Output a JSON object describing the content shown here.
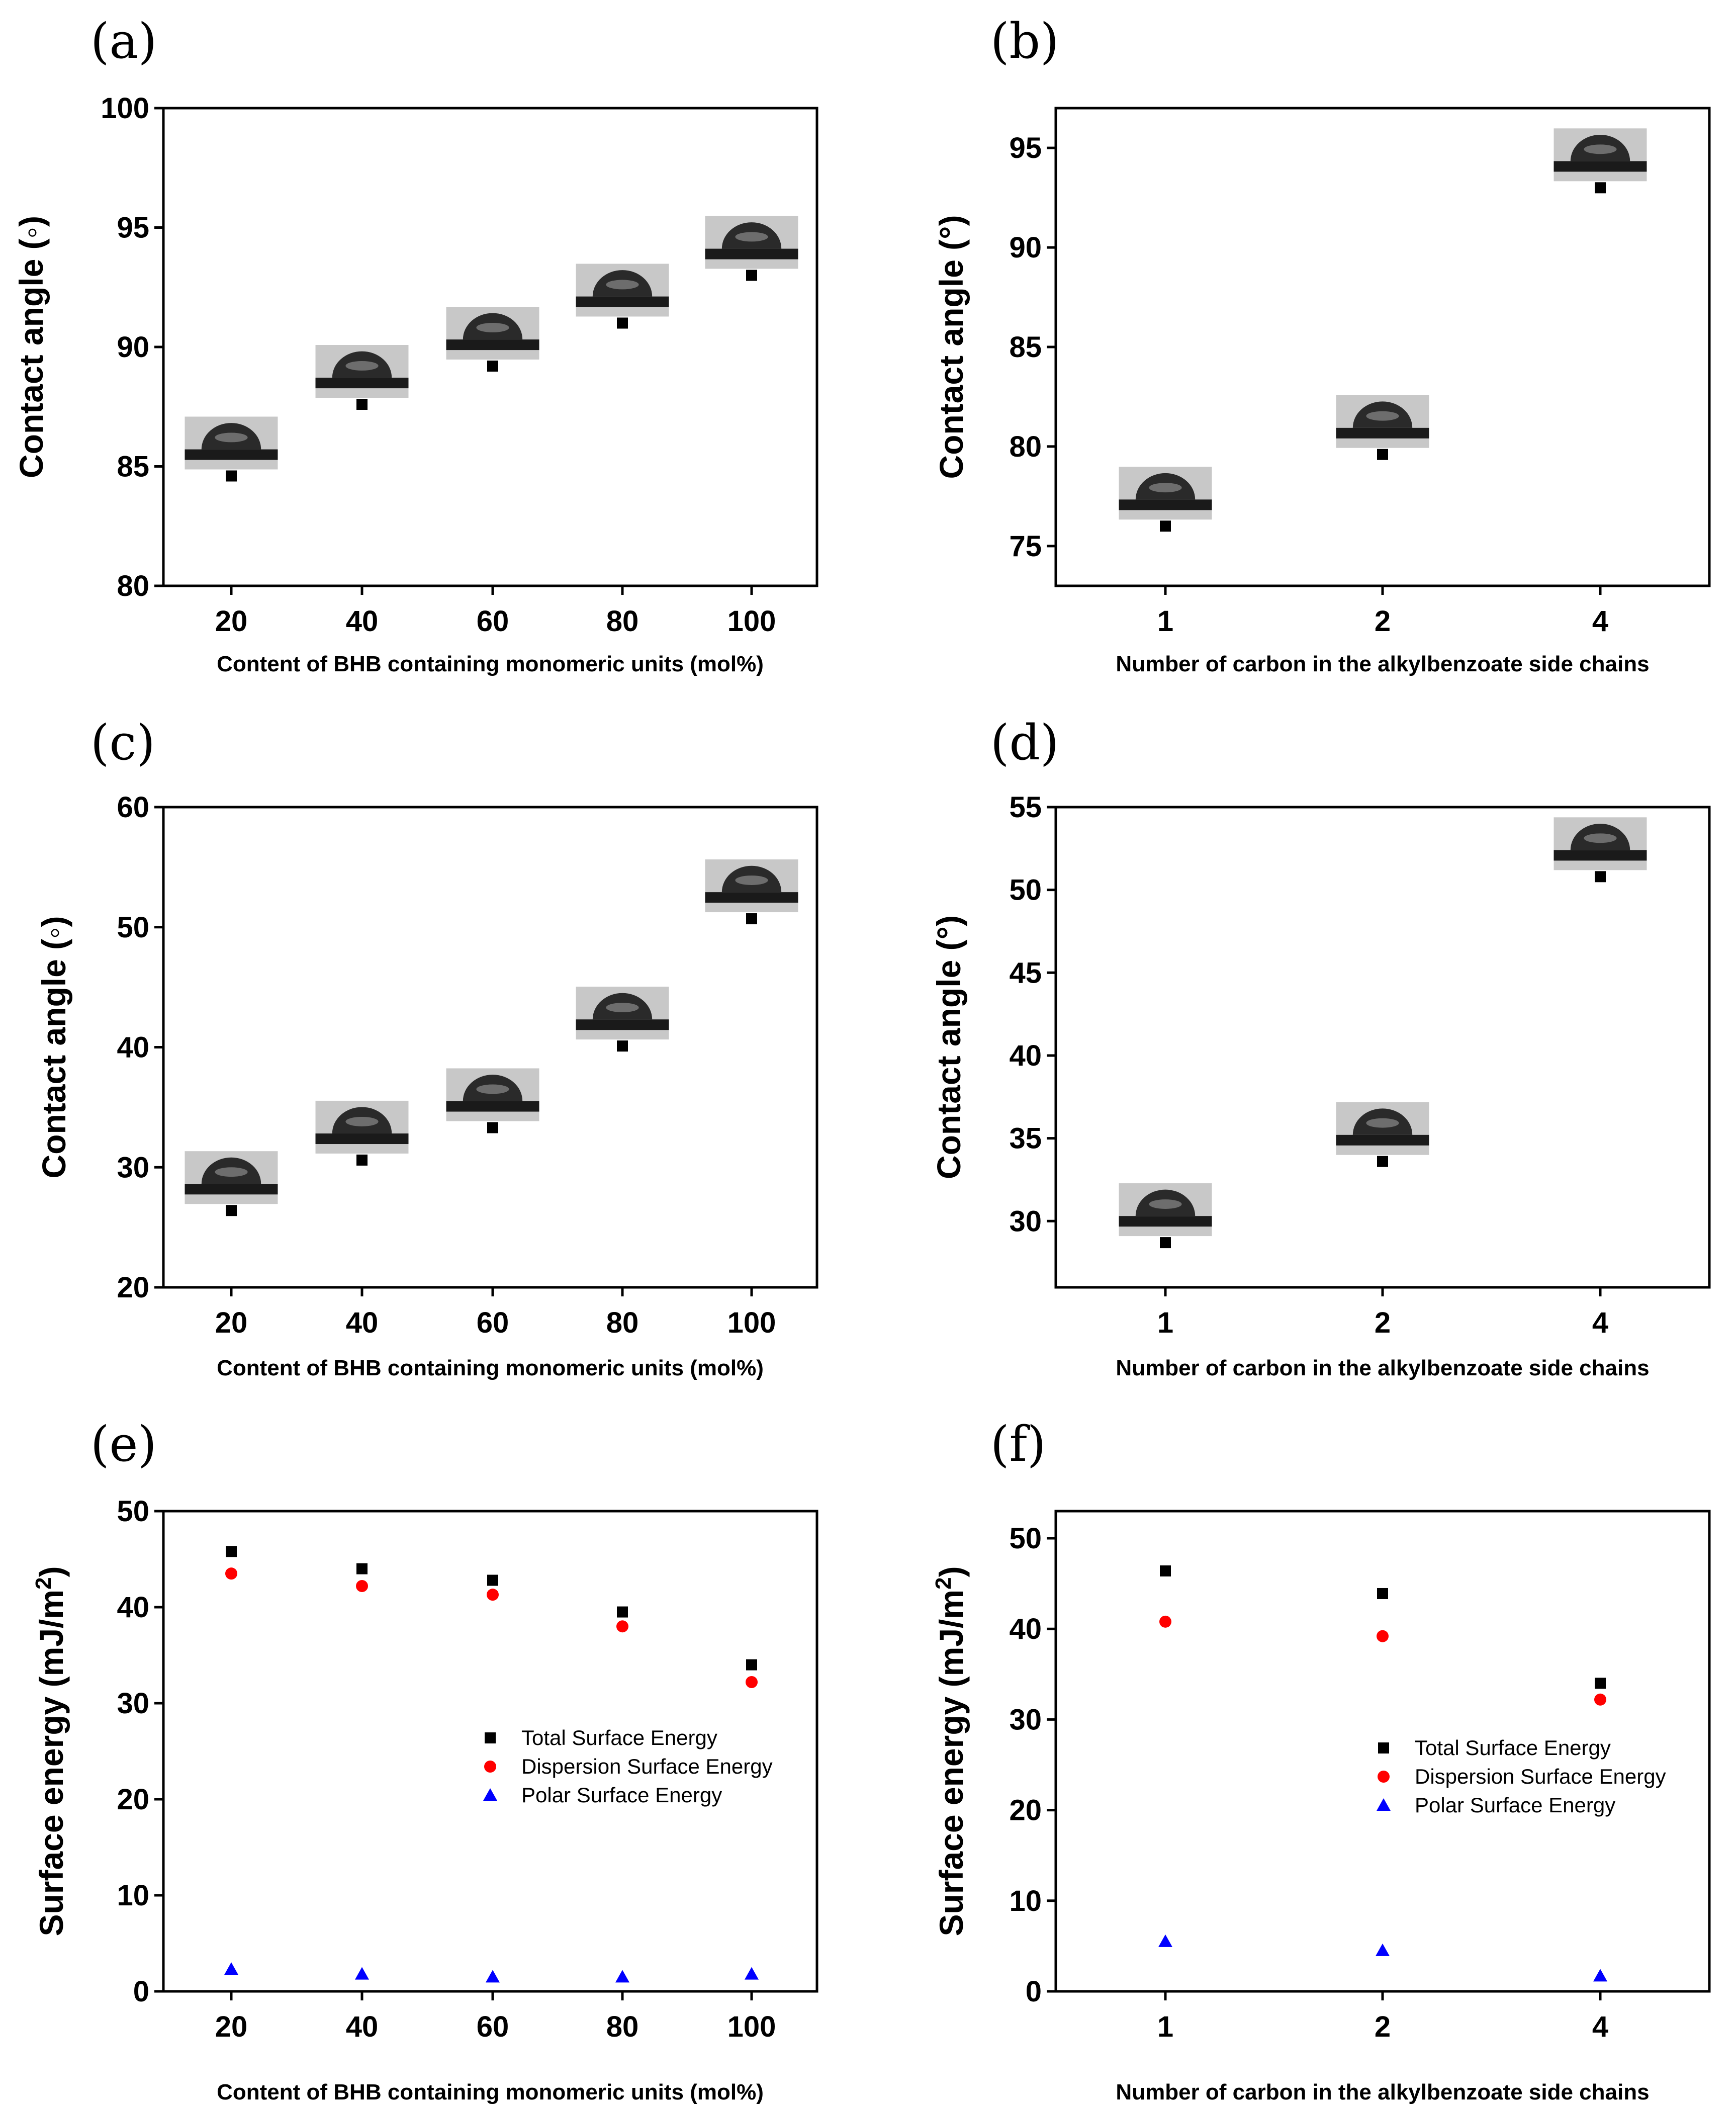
{
  "chart_data": [
    {
      "panel": "(a)",
      "type": "scatter",
      "xlabel": "Content of BHB containing monomeric units (mol%)",
      "ylabel": "Contact angle (◦)",
      "categories": [
        "20",
        "40",
        "60",
        "80",
        "100"
      ],
      "ylim": [
        80,
        100
      ],
      "yticks": [
        80,
        85,
        90,
        95,
        100
      ],
      "series": [
        {
          "name": "Contact angle",
          "marker": "square",
          "color": "#000000",
          "values": [
            84.6,
            87.6,
            89.2,
            91.0,
            93.0
          ]
        }
      ],
      "droplet_images": true
    },
    {
      "panel": "(b)",
      "type": "scatter",
      "xlabel": "Number of carbon in the alkylbenzoate side chains",
      "ylabel": "Contact angle (°)",
      "categories": [
        "1",
        "2",
        "4"
      ],
      "ylim": [
        73,
        97
      ],
      "yticks": [
        75,
        80,
        85,
        90,
        95
      ],
      "series": [
        {
          "name": "Contact angle",
          "marker": "square",
          "color": "#000000",
          "values": [
            76.0,
            79.6,
            93.0
          ]
        }
      ],
      "droplet_images": true
    },
    {
      "panel": "(c)",
      "type": "scatter",
      "xlabel": "Content of BHB containing monomeric units (mol%)",
      "ylabel": "Contact angle (◦)",
      "categories": [
        "20",
        "40",
        "60",
        "80",
        "100"
      ],
      "ylim": [
        20,
        60
      ],
      "yticks": [
        20,
        30,
        40,
        50,
        60
      ],
      "series": [
        {
          "name": "Contact angle",
          "marker": "square",
          "color": "#000000",
          "values": [
            26.4,
            30.6,
            33.3,
            40.1,
            50.7
          ]
        }
      ],
      "droplet_images": true
    },
    {
      "panel": "(d)",
      "type": "scatter",
      "xlabel": "Number of carbon in the alkylbenzoate side chains",
      "ylabel": "Contact angle (°)",
      "categories": [
        "1",
        "2",
        "4"
      ],
      "ylim": [
        26,
        55
      ],
      "yticks": [
        30,
        35,
        40,
        45,
        50,
        55
      ],
      "series": [
        {
          "name": "Contact angle",
          "marker": "square",
          "color": "#000000",
          "values": [
            28.7,
            33.6,
            50.8
          ]
        }
      ],
      "droplet_images": true
    },
    {
      "panel": "(e)",
      "type": "scatter",
      "xlabel": "Content of BHB containing monomeric units (mol%)",
      "ylabel": "Surface energy (mJ/m",
      "ylabel_sup": "2",
      "ylabel_end": ")",
      "categories": [
        "20",
        "40",
        "60",
        "80",
        "100"
      ],
      "ylim": [
        0,
        50
      ],
      "yticks": [
        0,
        10,
        20,
        30,
        40,
        50
      ],
      "legend_position": "center-right",
      "series": [
        {
          "name": "Total Surface Energy",
          "marker": "square",
          "color": "#000000",
          "values": [
            45.8,
            44.0,
            42.8,
            39.5,
            34.0
          ]
        },
        {
          "name": "Dispersion Surface Energy",
          "marker": "circle",
          "color": "#ff0000",
          "values": [
            43.5,
            42.2,
            41.3,
            38.0,
            32.2
          ]
        },
        {
          "name": "Polar Surface Energy",
          "marker": "triangle",
          "color": "#0000ff",
          "values": [
            2.3,
            1.8,
            1.5,
            1.5,
            1.8
          ]
        }
      ]
    },
    {
      "panel": "(f)",
      "type": "scatter",
      "xlabel": "Number of carbon in the alkylbenzoate side chains",
      "ylabel": "Surface energy (mJ/m",
      "ylabel_sup": "2",
      "ylabel_end": ")",
      "categories": [
        "1",
        "2",
        "4"
      ],
      "ylim": [
        0,
        53
      ],
      "yticks": [
        0,
        10,
        20,
        30,
        40,
        50
      ],
      "legend_position": "center-right",
      "series": [
        {
          "name": "Total Surface Energy",
          "marker": "square",
          "color": "#000000",
          "values": [
            46.4,
            43.9,
            34.0
          ]
        },
        {
          "name": "Dispersion Surface Energy",
          "marker": "circle",
          "color": "#ff0000",
          "values": [
            40.8,
            39.2,
            32.2
          ]
        },
        {
          "name": "Polar Surface Energy",
          "marker": "triangle",
          "color": "#0000ff",
          "values": [
            5.5,
            4.5,
            1.7
          ]
        }
      ]
    }
  ]
}
